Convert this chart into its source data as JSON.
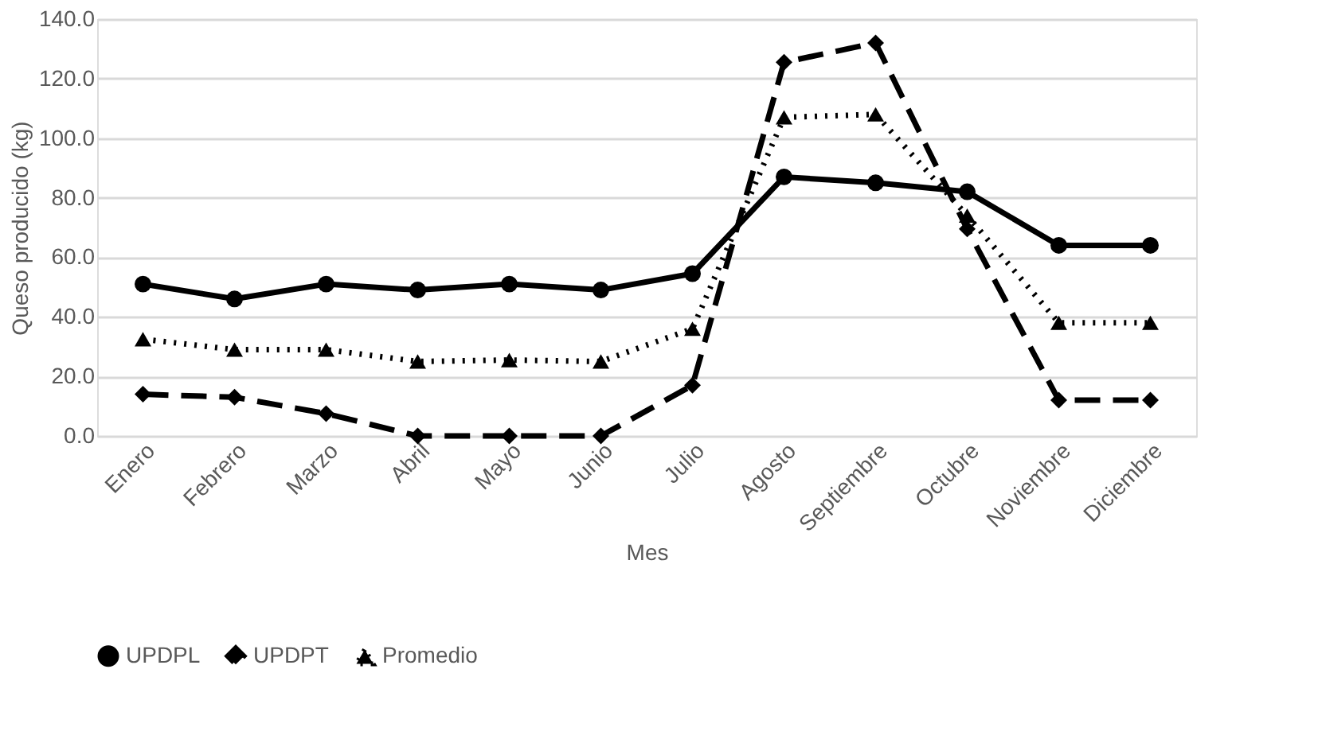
{
  "chart_data": {
    "type": "line",
    "xlabel": "Mes",
    "ylabel": "Queso producido (kg)",
    "categories": [
      "Enero",
      "Febrero",
      "Marzo",
      "Abril",
      "Mayo",
      "Junio",
      "Julio",
      "Agosto",
      "Septiembre",
      "Octubre",
      "Noviembre",
      "Diciembre"
    ],
    "series": [
      {
        "name": "UPDPL",
        "color": "#000000",
        "marker": "circle",
        "line_style": "solid",
        "values": [
          51,
          46,
          51,
          49,
          51,
          49,
          54.5,
          87,
          85,
          82,
          64,
          64
        ]
      },
      {
        "name": "UPDPT",
        "color": "#000000",
        "marker": "diamond",
        "line_style": "dashed",
        "values": [
          14,
          13,
          7.5,
          0,
          0,
          0,
          17,
          125.5,
          132,
          69.5,
          12,
          12
        ]
      },
      {
        "name": "Promedio",
        "color": "#000000",
        "marker": "triangle",
        "line_style": "dotted",
        "values": [
          32.5,
          29,
          29,
          25,
          25.5,
          25,
          36,
          107,
          108,
          74,
          38,
          38
        ]
      }
    ],
    "ylim": [
      0,
      140
    ],
    "yticks": [
      {
        "value": 0,
        "label": "0.0"
      },
      {
        "value": 20,
        "label": "20.0"
      },
      {
        "value": 40,
        "label": "40.0"
      },
      {
        "value": 60,
        "label": "60.0"
      },
      {
        "value": 80,
        "label": "80.0"
      },
      {
        "value": 100,
        "label": "100.0"
      },
      {
        "value": 120,
        "label": "120.0"
      },
      {
        "value": 140,
        "label": "140.0"
      }
    ],
    "grid": "y",
    "legend": "bottom"
  }
}
